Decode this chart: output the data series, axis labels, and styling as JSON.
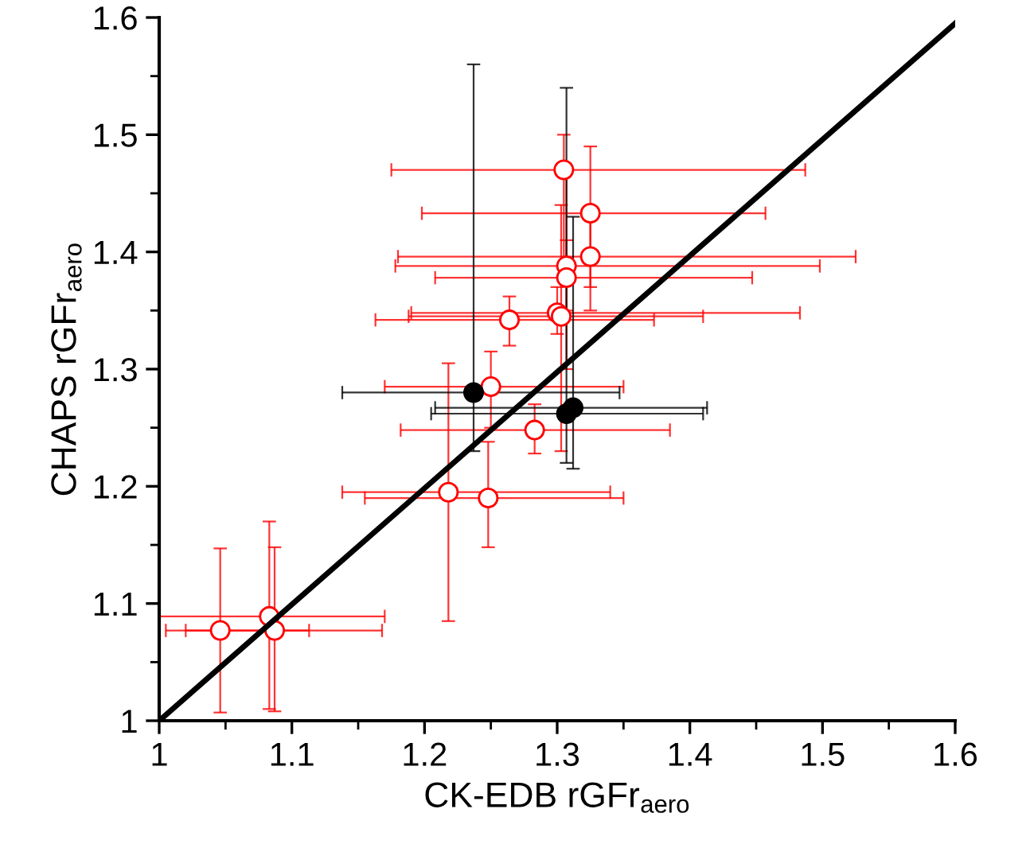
{
  "chart_data": {
    "type": "scatter",
    "xlabel": "CK-EDB rGFr$_{aero}$",
    "ylabel": "CHAPS rGFr$_{aero}$",
    "xlim": [
      1,
      1.6
    ],
    "ylim": [
      1,
      1.6
    ],
    "xticks": [
      1,
      1.1,
      1.2,
      1.3,
      1.4,
      1.5,
      1.6
    ],
    "yticks": [
      1,
      1.1,
      1.2,
      1.3,
      1.4,
      1.5,
      1.6
    ],
    "grid": false,
    "marker": "circle",
    "series": [
      {
        "color": "#ff0000",
        "x": [
          1.305,
          1.325,
          1.325,
          1.307,
          1.307,
          1.3,
          1.303,
          1.264,
          1.25,
          1.283,
          1.218,
          1.248,
          1.083,
          1.046,
          1.087
        ],
        "values": [
          1.47,
          1.433,
          1.396,
          1.388,
          1.378,
          1.348,
          1.345,
          1.342,
          1.285,
          1.248,
          1.195,
          1.19,
          1.089,
          1.077,
          1.077
        ],
        "errors": [
          [
            1.39,
            1.5
          ],
          [
            1.37,
            1.49
          ],
          [
            1.35,
            1.43
          ],
          [
            1.3,
            1.47
          ],
          [
            1.35,
            1.41
          ],
          [
            1.33,
            1.37
          ],
          [
            1.23,
            1.44
          ],
          [
            1.32,
            1.362
          ],
          [
            1.25,
            1.315
          ],
          [
            1.228,
            1.27
          ],
          [
            1.085,
            1.305
          ],
          [
            1.148,
            1.238
          ],
          [
            1.01,
            1.17
          ],
          [
            1.007,
            1.147
          ],
          [
            1.008,
            1.148
          ]
        ],
        "xerrors": [
          [
            1.175,
            1.487
          ],
          [
            1.198,
            1.457
          ],
          [
            1.18,
            1.525
          ],
          [
            1.178,
            1.498
          ],
          [
            1.208,
            1.447
          ],
          [
            1.19,
            1.483
          ],
          [
            1.188,
            1.41
          ],
          [
            1.163,
            1.373
          ],
          [
            1.17,
            1.35
          ],
          [
            1.182,
            1.385
          ],
          [
            1.138,
            1.34
          ],
          [
            1.155,
            1.35
          ],
          [
            1.0,
            1.17
          ],
          [
            1.005,
            1.113
          ],
          [
            1.02,
            1.168
          ]
        ]
      },
      {
        "color": "#000000",
        "x": [
          1.237,
          1.307,
          1.312
        ],
        "values": [
          1.28,
          1.262,
          1.267
        ],
        "errors": [
          [
            1.23,
            1.56
          ],
          [
            1.22,
            1.54
          ],
          [
            1.215,
            1.43
          ]
        ],
        "xerrors": [
          [
            1.138,
            1.347
          ],
          [
            1.205,
            1.41
          ],
          [
            1.208,
            1.413
          ]
        ]
      },
      {
        "type": "line",
        "color": "#000000",
        "x": [
          1,
          1.6
        ],
        "values": [
          1,
          1.595
        ],
        "marker": "none",
        "line_style": "solid"
      }
    ]
  }
}
